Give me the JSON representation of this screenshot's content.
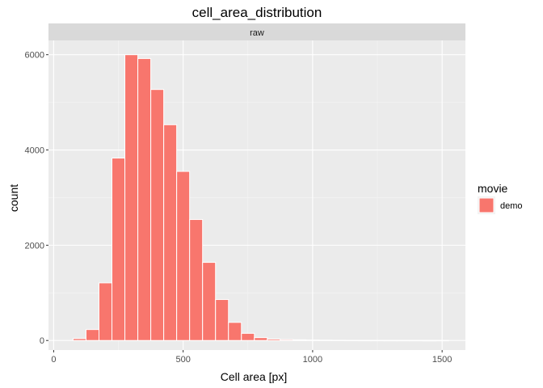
{
  "chart_data": {
    "type": "bar",
    "subtype": "histogram",
    "title": "cell_area_distribution",
    "facet_label": "raw",
    "xlabel": "Cell area [px]",
    "ylabel": "count",
    "xlim": [
      -20,
      1590
    ],
    "ylim": [
      -200,
      6300
    ],
    "x_ticks": [
      0,
      500,
      1000,
      1500
    ],
    "x_tick_labels": [
      "0",
      "500",
      "1000",
      "1500"
    ],
    "y_ticks": [
      0,
      2000,
      4000,
      6000
    ],
    "y_tick_labels": [
      "0",
      "2000",
      "4000",
      "6000"
    ],
    "grid": true,
    "legend": {
      "title": "movie",
      "position": "right",
      "entries": [
        "demo"
      ]
    },
    "bin_width": 50,
    "bin_centers": [
      100,
      150,
      200,
      250,
      300,
      350,
      400,
      450,
      500,
      550,
      600,
      650,
      700,
      750,
      800,
      850,
      900,
      950,
      1000,
      1050,
      1100,
      1150,
      1200,
      1250,
      1300,
      1350,
      1400,
      1450,
      1500
    ],
    "series": [
      {
        "name": "demo",
        "color": "#F8766D",
        "values": [
          40,
          230,
          1210,
          3830,
          6000,
          5920,
          5270,
          4530,
          3550,
          2540,
          1640,
          860,
          380,
          150,
          60,
          30,
          20,
          15,
          10,
          8,
          5,
          3,
          2,
          2,
          1,
          1,
          1,
          0,
          1
        ]
      }
    ]
  }
}
